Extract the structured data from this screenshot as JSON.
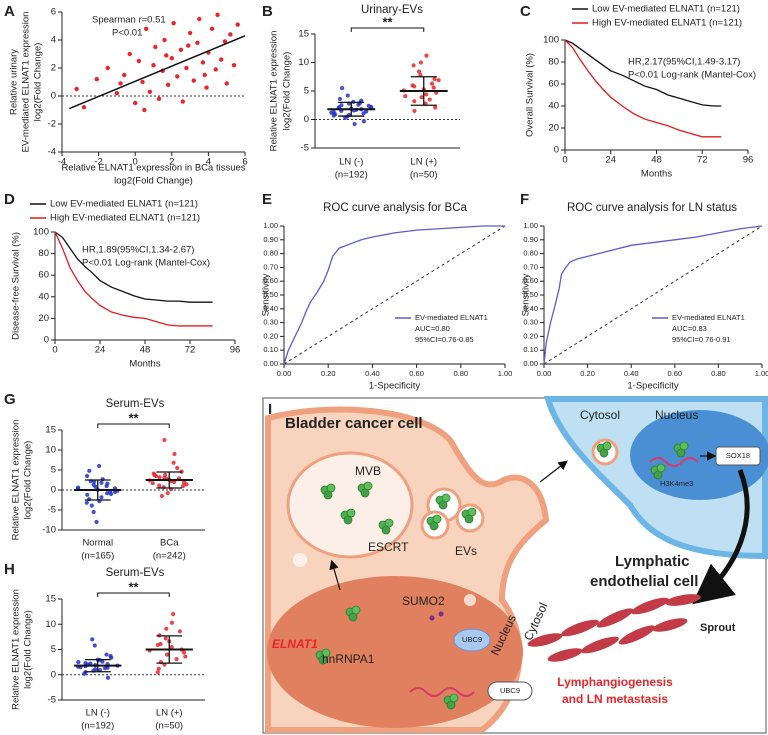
{
  "chart_data": [
    {
      "type": "scatter",
      "panel_label": "A",
      "x": [
        -3.2,
        -2.8,
        -2.1,
        -1.5,
        -1.0,
        -0.6,
        -0.3,
        0,
        0.2,
        0.4,
        0.6,
        0.8,
        1.0,
        1.1,
        1.3,
        1.5,
        1.6,
        1.8,
        2.0,
        2.1,
        2.3,
        2.5,
        2.6,
        2.8,
        3.0,
        3.2,
        3.4,
        3.5,
        3.7,
        3.9,
        4.0,
        4.2,
        4.4,
        4.5,
        4.7,
        4.9,
        5.0,
        5.2,
        5.4,
        5.6,
        0.5,
        1.7,
        2.9,
        -0.8,
        3.8
      ],
      "values": [
        0.5,
        -0.8,
        1.2,
        2.0,
        0.2,
        1.5,
        3.0,
        -0.5,
        2.5,
        1.0,
        4.8,
        0.3,
        2.2,
        3.5,
        -0.2,
        1.8,
        4.0,
        0.8,
        2.7,
        5.2,
        1.4,
        3.3,
        -0.4,
        2.0,
        4.5,
        1.1,
        3.8,
        5.5,
        2.4,
        0.6,
        3.1,
        4.8,
        1.9,
        5.8,
        2.6,
        3.9,
        0.9,
        4.4,
        2.2,
        5.1,
        -1.0,
        2.9,
        3.6,
        0.9,
        1.5
      ],
      "color": "#e8262a",
      "fit": {
        "x": [
          -3.6,
          6
        ],
        "values": [
          -0.9,
          4.3
        ]
      },
      "xlim": [
        -4,
        6
      ],
      "xticks": [
        -4,
        -2,
        0,
        2,
        4,
        6
      ],
      "ylim": [
        -4,
        6
      ],
      "yticks": [
        -4,
        -2,
        0,
        2,
        4,
        6
      ],
      "ylabel": [
        "Relative urinary",
        "EV-mediated ELNAT1 expression",
        "log2(Fold Change)"
      ],
      "xlabel": [
        "Relative ELNAT1 expression in BCa tissues",
        "log2(Fold Change)"
      ],
      "annotations": [
        "Spearman r=0.51",
        "P<0.01"
      ]
    },
    {
      "type": "strip",
      "panel_label": "B",
      "title": "Urinary-EVs",
      "groups": [
        {
          "name": "LN (-)",
          "n_label": "(n=192)",
          "color": "#2233cc",
          "mean": 1.8,
          "sd": 1.2,
          "values": [
            1.2,
            2.0,
            0.5,
            3.1,
            1.8,
            2.4,
            0.9,
            1.5,
            2.8,
            -0.8,
            1.1,
            2.2,
            3.6,
            0.3,
            1.9,
            2.6,
            1.4,
            0.7,
            2.1,
            4.2,
            1.6,
            2.9,
            -0.3,
            1.3,
            2.5,
            0.8,
            1.7,
            3.3,
            2.0,
            5.5
          ]
        },
        {
          "name": "LN (+)",
          "n_label": "(n=50)",
          "color": "#e8262a",
          "mean": 5.0,
          "sd": 2.5,
          "values": [
            5.1,
            3.2,
            7.8,
            4.4,
            6.3,
            2.1,
            9.5,
            5.8,
            3.9,
            11.2,
            4.7,
            6.9,
            1.5,
            8.4,
            5.3,
            3.5,
            7.1,
            4.1,
            6.0,
            10.0,
            2.8,
            5.6
          ]
        }
      ],
      "ylim": [
        -5,
        15
      ],
      "yticks": [
        -5,
        0,
        5,
        10,
        15
      ],
      "ylabel": [
        "Relative ELNAT1 expression",
        "log2(Fold Change)"
      ],
      "significance": "**"
    },
    {
      "type": "survival",
      "panel_label": "C",
      "x": [
        0,
        4,
        8,
        12,
        16,
        20,
        24,
        30,
        36,
        42,
        48,
        54,
        60,
        66,
        72,
        78,
        82
      ],
      "series": [
        {
          "name": "Low EV-mediated ELNAT1 (n=121)",
          "color": "#111111",
          "values": [
            100,
            97,
            92,
            87,
            82,
            77,
            72,
            68,
            63,
            58,
            55,
            50,
            47,
            44,
            41,
            40,
            40
          ]
        },
        {
          "name": "High EV-mediated ELNAT1 (n=121)",
          "color": "#e31a1c",
          "values": [
            100,
            93,
            82,
            72,
            63,
            55,
            48,
            40,
            33,
            28,
            25,
            22,
            18,
            15,
            12,
            12,
            12
          ]
        }
      ],
      "xlim": [
        0,
        96
      ],
      "xticks": [
        0,
        24,
        48,
        72,
        96
      ],
      "ylim": [
        0,
        100
      ],
      "yticks": [
        0,
        20,
        40,
        60,
        80,
        100
      ],
      "ylabel": [
        "Overall Survival (%)"
      ],
      "xlabel": [
        "Months"
      ],
      "annotations": [
        "HR,2.17(95%CI,1.49-3.17)",
        "P<0.01 Log-rank (Mantel-Cox)"
      ]
    },
    {
      "type": "survival",
      "panel_label": "D",
      "x": [
        0,
        4,
        8,
        12,
        16,
        20,
        24,
        30,
        36,
        42,
        48,
        54,
        60,
        66,
        72,
        78,
        84
      ],
      "series": [
        {
          "name": "Low EV-mediated ELNAT1 (n=121)",
          "color": "#111111",
          "values": [
            100,
            95,
            85,
            75,
            68,
            62,
            55,
            49,
            45,
            41,
            38,
            37,
            36,
            36,
            35,
            35,
            35
          ]
        },
        {
          "name": "High EV-mediated ELNAT1 (n=121)",
          "color": "#e31a1c",
          "values": [
            100,
            85,
            67,
            55,
            45,
            38,
            32,
            26,
            23,
            21,
            20,
            17,
            14,
            13,
            13,
            13,
            13
          ]
        }
      ],
      "xlim": [
        0,
        96
      ],
      "xticks": [
        0,
        24,
        48,
        72,
        96
      ],
      "ylim": [
        0,
        100
      ],
      "yticks": [
        0,
        20,
        40,
        60,
        80,
        100
      ],
      "ylabel": [
        "Disease-free Survival (%)"
      ],
      "xlabel": [
        "Months"
      ],
      "annotations": [
        "HR,1.89(95%CI,1.34-2.67)",
        "P<0.01 Log-rank (Mantel-Cox)"
      ]
    },
    {
      "type": "roc",
      "panel_label": "E",
      "title": "ROC curve analysis for BCa",
      "x": [
        0,
        0.02,
        0.05,
        0.08,
        0.1,
        0.12,
        0.15,
        0.18,
        0.2,
        0.22,
        0.25,
        0.3,
        0.35,
        0.4,
        0.5,
        0.6,
        0.7,
        0.8,
        0.9,
        1.0
      ],
      "series": [
        {
          "name": "EV-mediated ELNAT1",
          "color": "#5b5bd6",
          "values": [
            0,
            0.1,
            0.2,
            0.3,
            0.38,
            0.45,
            0.52,
            0.6,
            0.68,
            0.78,
            0.84,
            0.87,
            0.9,
            0.92,
            0.95,
            0.97,
            0.98,
            0.99,
            1.0,
            1.0
          ]
        }
      ],
      "xlim": [
        0,
        1
      ],
      "ylim": [
        0,
        1
      ],
      "xticks": [
        {
          "value": 0,
          "label": "0.00"
        },
        {
          "value": 0.2,
          "label": "0.20"
        },
        {
          "value": 0.4,
          "label": "0.40"
        },
        {
          "value": 0.6,
          "label": "0.60"
        },
        {
          "value": 0.8,
          "label": "0.80"
        },
        {
          "value": 1,
          "label": "1.00"
        }
      ],
      "yticks": [
        {
          "value": 0,
          "label": "0.00"
        },
        {
          "value": 0.1,
          "label": "0.10"
        },
        {
          "value": 0.2,
          "label": "0.20"
        },
        {
          "value": 0.3,
          "label": "0.30"
        },
        {
          "value": 0.4,
          "label": "0.40"
        },
        {
          "value": 0.5,
          "label": "0.50"
        },
        {
          "value": 0.6,
          "label": "0.60"
        },
        {
          "value": 0.7,
          "label": "0.70"
        },
        {
          "value": 0.8,
          "label": "0.80"
        },
        {
          "value": 0.9,
          "label": "0.90"
        },
        {
          "value": 1,
          "label": "1.00"
        }
      ],
      "xlabel": [
        "1-Specificity"
      ],
      "ylabel": [
        "Sensitivity"
      ],
      "annotations": [
        "AUC=0.80",
        "95%CI=0.76-0.85"
      ]
    },
    {
      "type": "roc",
      "panel_label": "F",
      "title": "ROC curve analysis for LN status",
      "x": [
        0,
        0.01,
        0.03,
        0.05,
        0.07,
        0.08,
        0.1,
        0.12,
        0.15,
        0.2,
        0.25,
        0.3,
        0.4,
        0.5,
        0.6,
        0.7,
        0.8,
        0.9,
        1.0
      ],
      "series": [
        {
          "name": "EV-mediated ELNAT1",
          "color": "#5b5bd6",
          "values": [
            0,
            0.15,
            0.3,
            0.42,
            0.55,
            0.65,
            0.7,
            0.74,
            0.76,
            0.78,
            0.8,
            0.82,
            0.86,
            0.88,
            0.9,
            0.92,
            0.95,
            0.98,
            1.0
          ]
        }
      ],
      "xlim": [
        0,
        1
      ],
      "ylim": [
        0,
        1
      ],
      "xticks": [
        {
          "value": 0,
          "label": "0.00"
        },
        {
          "value": 0.2,
          "label": "0.20"
        },
        {
          "value": 0.4,
          "label": "0.40"
        },
        {
          "value": 0.6,
          "label": "0.60"
        },
        {
          "value": 0.8,
          "label": "0.80"
        },
        {
          "value": 1,
          "label": "1.00"
        }
      ],
      "yticks": [
        {
          "value": 0,
          "label": "0.00"
        },
        {
          "value": 0.1,
          "label": "0.10"
        },
        {
          "value": 0.2,
          "label": "0.20"
        },
        {
          "value": 0.3,
          "label": "0.30"
        },
        {
          "value": 0.4,
          "label": "0.40"
        },
        {
          "value": 0.5,
          "label": "0.50"
        },
        {
          "value": 0.6,
          "label": "0.60"
        },
        {
          "value": 0.7,
          "label": "0.70"
        },
        {
          "value": 0.8,
          "label": "0.80"
        },
        {
          "value": 0.9,
          "label": "0.90"
        },
        {
          "value": 1,
          "label": "1.00"
        }
      ],
      "xlabel": [
        "1-Specificity"
      ],
      "ylabel": [
        "Sensitivity"
      ],
      "annotations": [
        "AUC=0.83",
        "95%CI=0.76-0.91"
      ]
    },
    {
      "type": "strip",
      "panel_label": "G",
      "title": "Serum-EVs",
      "groups": [
        {
          "name": "Normal",
          "n_label": "(n=165)",
          "color": "#2233cc",
          "mean": 0,
          "sd": 2.5,
          "values": [
            0.3,
            -1.2,
            2.1,
            -2.8,
            1.0,
            -0.5,
            3.5,
            -3.9,
            0.8,
            -1.8,
            1.6,
            -0.2,
            4.8,
            -5.5,
            0.1,
            2.7,
            -1.0,
            0.6,
            -2.3,
            1.3,
            6.0,
            -0.8,
            0.4,
            -3.2,
            2.2,
            -8.0,
            1.8,
            -0.4
          ]
        },
        {
          "name": "BCa",
          "n_label": "(n=242)",
          "color": "#e8262a",
          "mean": 2.5,
          "sd": 2.0,
          "values": [
            2.4,
            1.1,
            3.8,
            0.2,
            2.9,
            4.6,
            1.7,
            3.2,
            -0.8,
            2.0,
            5.5,
            1.4,
            3.5,
            0.7,
            2.6,
            6.8,
            1.9,
            4.1,
            -1.5,
            3.0,
            2.2,
            9.0,
            1.0,
            3.7,
            12.5,
            2.8
          ]
        }
      ],
      "ylim": [
        -10,
        15
      ],
      "yticks": [
        -10,
        -5,
        0,
        5,
        10,
        15
      ],
      "ylabel": [
        "Relative ELNAT1 expression",
        "log2(Fold Change)"
      ],
      "significance": "**"
    },
    {
      "type": "strip",
      "panel_label": "H",
      "title": "Serum-EVs",
      "groups": [
        {
          "name": "LN (-)",
          "n_label": "(n=192)",
          "color": "#2233cc",
          "mean": 1.8,
          "sd": 1.2,
          "values": [
            1.6,
            2.3,
            0.8,
            2.9,
            1.4,
            3.4,
            0.2,
            2.0,
            1.1,
            2.6,
            4.0,
            1.8,
            0.5,
            2.2,
            3.0,
            1.3,
            -0.6,
            2.5,
            1.7,
            5.8,
            0.9,
            2.1,
            3.7,
            1.5,
            7.0,
            1.9
          ]
        },
        {
          "name": "LN (+)",
          "n_label": "(n=50)",
          "color": "#e8262a",
          "mean": 5.0,
          "sd": 2.7,
          "values": [
            4.8,
            2.5,
            7.2,
            5.5,
            3.1,
            8.6,
            1.2,
            6.1,
            4.0,
            10.3,
            5.0,
            3.6,
            7.8,
            2.0,
            6.6,
            12.0,
            4.4,
            0.5,
            5.9,
            9.1
          ]
        }
      ],
      "ylim": [
        -5,
        15
      ],
      "yticks": [
        -5,
        0,
        5,
        10,
        15
      ],
      "ylabel": [
        "Relative ELNAT1 expression",
        "log2(Fold Change)"
      ],
      "significance": "**"
    }
  ],
  "diagram": {
    "panel_label": "I",
    "cell_title": "Bladder cancer cell",
    "mvb": "MVB",
    "escrt": "ESCRT",
    "evs": "EVs",
    "cytosol_top": "Cytosol",
    "nucleus_top": "Nucleus",
    "sox18": "SOX18",
    "h3k4me3": "H3K4me3",
    "endothelial": [
      "Lymphatic",
      "endothelial cell"
    ],
    "sprout": "Sprout",
    "sumo2": "SUMO2",
    "ubc9_cytosol": "UBC9",
    "ubc9_nucleus": "UBC9",
    "elnat1": "ELNAT1",
    "hnrnpa1": "hnRNPA1",
    "nucleus_side": "Nucleus",
    "cytosol_side": "Cytosol",
    "outcome": [
      "Lymphangiogenesis",
      "and LN metastasis"
    ]
  }
}
